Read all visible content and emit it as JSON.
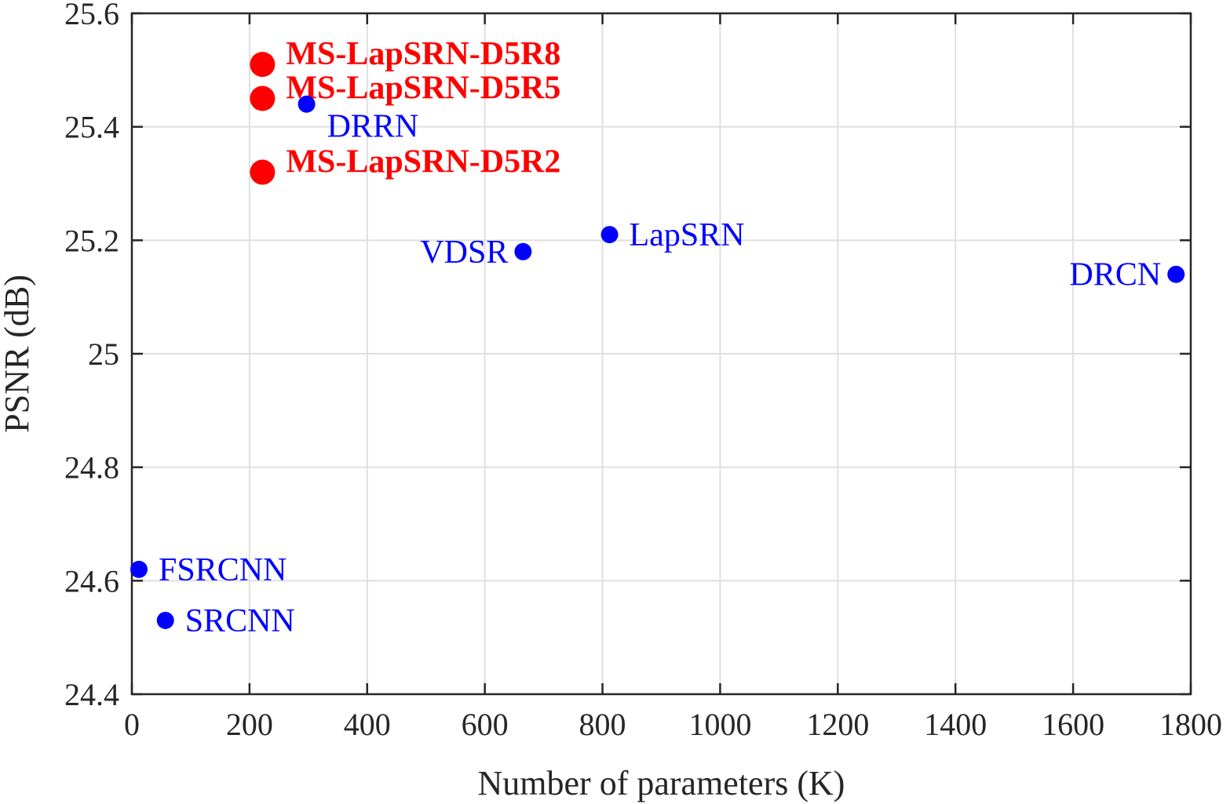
{
  "chart_data": {
    "type": "scatter",
    "title": "",
    "xlabel": "Number of parameters (K)",
    "ylabel": "PSNR (dB)",
    "xlim": [
      0,
      1800
    ],
    "ylim": [
      24.4,
      25.6
    ],
    "xticks": [
      "0",
      "200",
      "400",
      "600",
      "800",
      "1000",
      "1200",
      "1400",
      "1600",
      "1800"
    ],
    "yticks": [
      "24.4",
      "24.6",
      "24.8",
      "25",
      "25.2",
      "25.4",
      "25.6"
    ],
    "grid": true,
    "colors": {
      "baseline": "#0000ff",
      "proposed": "#ff0000",
      "axis": "#262626",
      "grid": "#dfdfdf"
    },
    "points": [
      {
        "label": "MS-LapSRN-D5R8",
        "x": 222,
        "y": 25.51,
        "group": "proposed",
        "label_side": "right"
      },
      {
        "label": "MS-LapSRN-D5R5",
        "x": 222,
        "y": 25.45,
        "group": "proposed",
        "label_side": "right"
      },
      {
        "label": "MS-LapSRN-D5R2",
        "x": 222,
        "y": 25.32,
        "group": "proposed",
        "label_side": "right"
      },
      {
        "label": "DRRN",
        "x": 297,
        "y": 25.44,
        "group": "baseline",
        "label_side": "below-right"
      },
      {
        "label": "VDSR",
        "x": 665,
        "y": 25.18,
        "group": "baseline",
        "label_side": "left"
      },
      {
        "label": "LapSRN",
        "x": 812,
        "y": 25.21,
        "group": "baseline",
        "label_side": "right"
      },
      {
        "label": "DRCN",
        "x": 1775,
        "y": 25.14,
        "group": "baseline",
        "label_side": "left"
      },
      {
        "label": "FSRCNN",
        "x": 12,
        "y": 24.62,
        "group": "baseline",
        "label_side": "right"
      },
      {
        "label": "SRCNN",
        "x": 57,
        "y": 24.53,
        "group": "baseline",
        "label_side": "right"
      }
    ]
  }
}
